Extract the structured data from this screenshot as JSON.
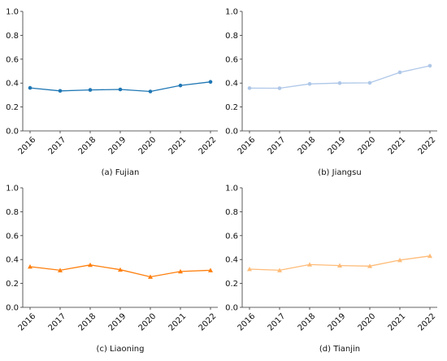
{
  "chart_data": [
    {
      "type": "line",
      "title": "(a) Fujian",
      "color": "#1f77b4",
      "marker": "circle",
      "categories": [
        "2016",
        "2017",
        "2018",
        "2019",
        "2020",
        "2021",
        "2022"
      ],
      "values": [
        0.36,
        0.335,
        0.343,
        0.347,
        0.33,
        0.38,
        0.41
      ],
      "ylim": [
        0,
        1.0
      ],
      "yticks": [
        "0.0",
        "0.2",
        "0.4",
        "0.6",
        "0.8",
        "1.0"
      ],
      "grid": false
    },
    {
      "type": "line",
      "title": "(b) Jiangsu",
      "color": "#aec7e8",
      "marker": "circle",
      "categories": [
        "2016",
        "2017",
        "2018",
        "2019",
        "2020",
        "2021",
        "2022"
      ],
      "values": [
        0.358,
        0.357,
        0.393,
        0.4,
        0.402,
        0.49,
        0.545
      ],
      "ylim": [
        0,
        1.0
      ],
      "yticks": [
        "0.0",
        "0.2",
        "0.4",
        "0.6",
        "0.8",
        "1.0"
      ],
      "grid": false
    },
    {
      "type": "line",
      "title": "(c) Liaoning",
      "color": "#ff7f0e",
      "marker": "triangle",
      "categories": [
        "2016",
        "2017",
        "2018",
        "2019",
        "2020",
        "2021",
        "2022"
      ],
      "values": [
        0.34,
        0.31,
        0.355,
        0.315,
        0.255,
        0.3,
        0.31
      ],
      "ylim": [
        0,
        1.0
      ],
      "yticks": [
        "0.0",
        "0.2",
        "0.4",
        "0.6",
        "0.8",
        "1.0"
      ],
      "grid": false
    },
    {
      "type": "line",
      "title": "(d) Tianjin",
      "color": "#ffbb78",
      "marker": "triangle",
      "categories": [
        "2016",
        "2017",
        "2018",
        "2019",
        "2020",
        "2021",
        "2022"
      ],
      "values": [
        0.32,
        0.31,
        0.358,
        0.35,
        0.345,
        0.395,
        0.43
      ],
      "ylim": [
        0,
        1.0
      ],
      "yticks": [
        "0.0",
        "0.2",
        "0.4",
        "0.6",
        "0.8",
        "1.0"
      ],
      "grid": false
    }
  ]
}
